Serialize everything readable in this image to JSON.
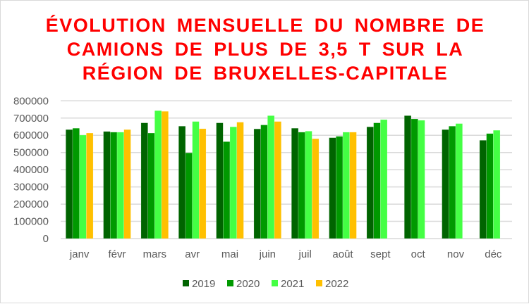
{
  "chart_data": {
    "type": "bar",
    "title_lines": [
      "ÉVOLUTION MENSUELLE DU NOMBRE DE",
      "CAMIONS DE PLUS DE 3,5 T SUR LA",
      "RÉGION DE BRUXELLES-CAPITALE"
    ],
    "categories": [
      "janv",
      "févr",
      "mars",
      "avr",
      "mai",
      "juin",
      "juil",
      "août",
      "sept",
      "oct",
      "nov",
      "déc"
    ],
    "ylim": [
      0,
      800000
    ],
    "yticks": [
      "0",
      "100000",
      "200000",
      "300000",
      "400000",
      "500000",
      "600000",
      "700000",
      "800000"
    ],
    "grid": true,
    "legend_position": "bottom",
    "series": [
      {
        "name": "2019",
        "color": "#006400",
        "values": [
          633000,
          622000,
          672000,
          653000,
          672000,
          637000,
          641000,
          586000,
          649000,
          714000,
          633000,
          571000
        ]
      },
      {
        "name": "2020",
        "color": "#009900",
        "values": [
          641000,
          618000,
          613000,
          498000,
          563000,
          660000,
          618000,
          594000,
          672000,
          695000,
          653000,
          610000
        ]
      },
      {
        "name": "2021",
        "color": "#44ff44",
        "values": [
          601000,
          618000,
          743000,
          680000,
          649000,
          714000,
          624000,
          618000,
          691000,
          687000,
          668000,
          629000
        ]
      },
      {
        "name": "2022",
        "color": "#ffc000",
        "values": [
          613000,
          633000,
          739000,
          638000,
          676000,
          680000,
          580000,
          618000,
          null,
          null,
          null,
          null
        ]
      }
    ]
  }
}
